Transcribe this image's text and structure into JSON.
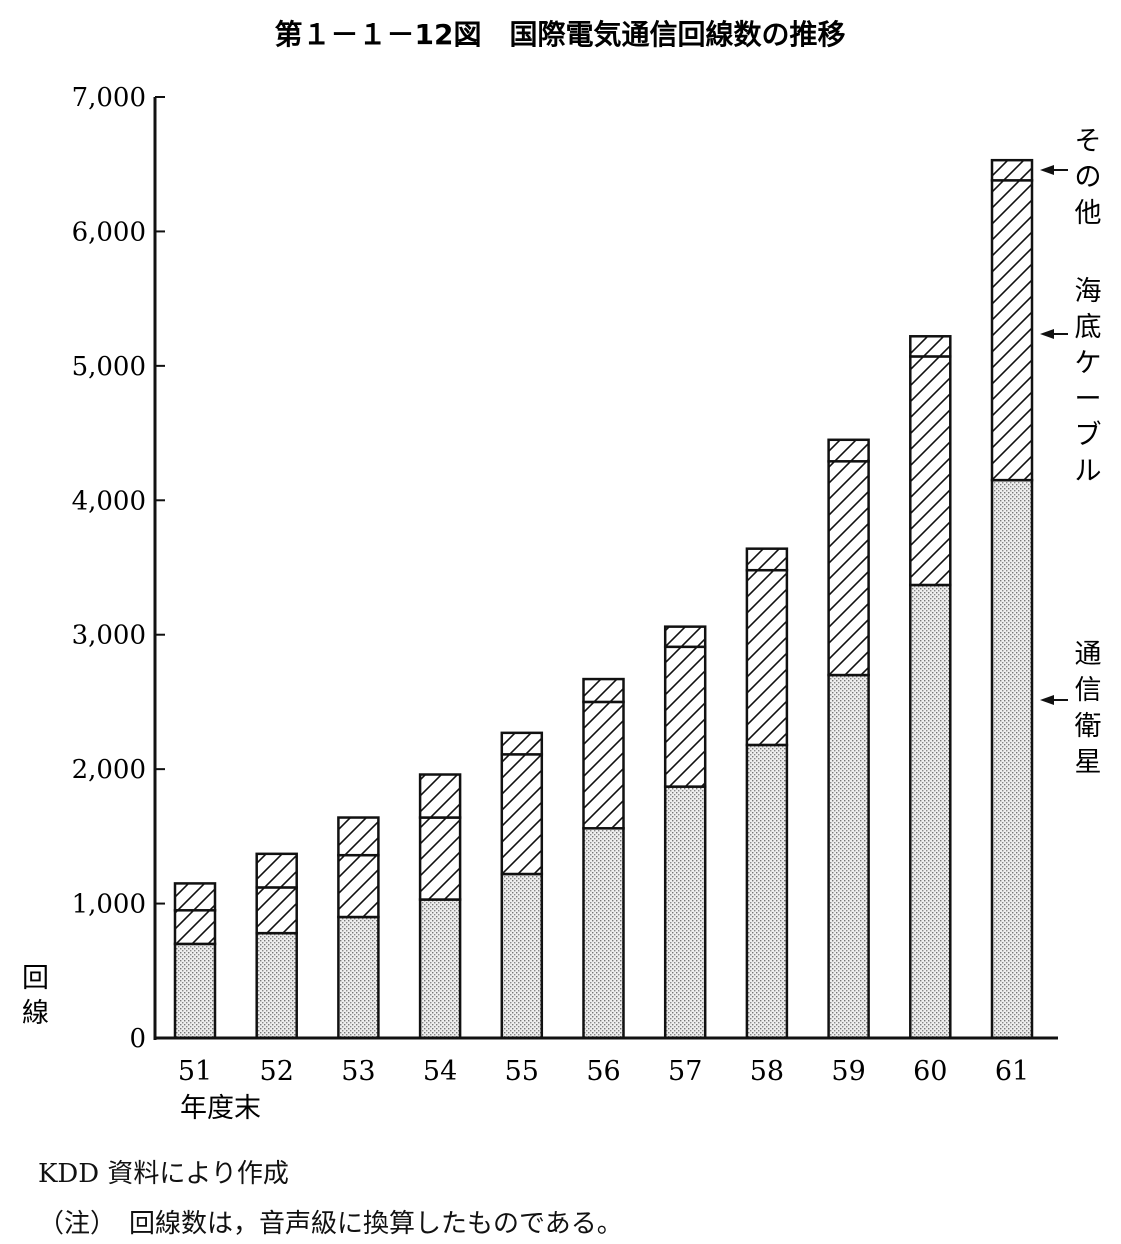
{
  "chart_data": {
    "type": "bar",
    "stacked": true,
    "title": "第１－１－12図　国際電気通信回線数の推移",
    "ylabel": "回線",
    "xlabel": "年度末",
    "ylim": [
      0,
      7000
    ],
    "yticks": [
      0,
      1000,
      2000,
      3000,
      4000,
      5000,
      6000,
      7000
    ],
    "ytick_labels": [
      "0",
      "1,000",
      "2,000",
      "3,000",
      "4,000",
      "5,000",
      "6,000",
      "7,000"
    ],
    "categories": [
      "51",
      "52",
      "53",
      "54",
      "55",
      "56",
      "57",
      "58",
      "59",
      "60",
      "61"
    ],
    "series": [
      {
        "name": "通信衛星",
        "pattern": "dotted",
        "values": [
          700,
          780,
          900,
          1030,
          1220,
          1560,
          1870,
          2180,
          2700,
          3370,
          4150
        ]
      },
      {
        "name": "海底ケーブル",
        "pattern": "hatched",
        "values": [
          250,
          340,
          460,
          610,
          890,
          940,
          1040,
          1300,
          1590,
          1700,
          2230
        ]
      },
      {
        "name": "その他",
        "pattern": "hatched",
        "values": [
          200,
          250,
          280,
          320,
          160,
          170,
          150,
          160,
          160,
          150,
          150
        ]
      }
    ],
    "legend_placement": "right (arrow labels)",
    "grid": false
  },
  "notes": {
    "source": "KDD 資料により作成",
    "footnote": "（注）　回線数は，音声級に換算したものである。"
  }
}
